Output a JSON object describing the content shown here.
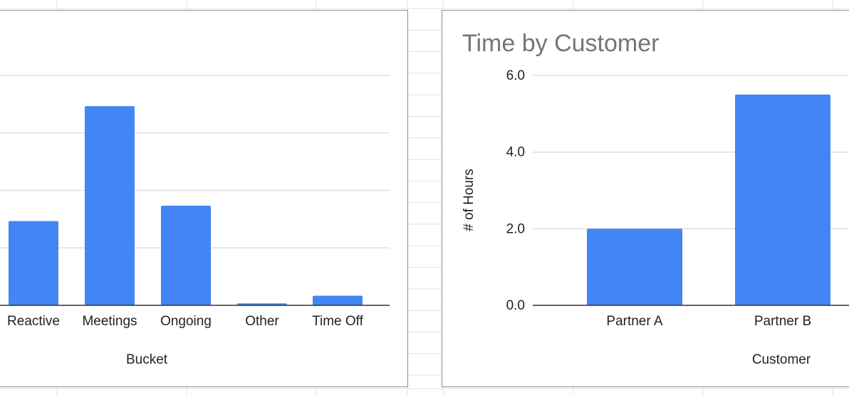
{
  "colors": {
    "bar": "#4285f4",
    "gridline": "#d9d9d9",
    "axis": "#333333",
    "title": "#757575",
    "text": "#222222",
    "sheet_grid": "#e2e2e2"
  },
  "chart_data": [
    {
      "type": "bar",
      "title": "",
      "xlabel": "Bucket",
      "ylabel": "",
      "categories": [
        "Reactive",
        "Meetings",
        "Ongoing",
        "Other",
        "Time Off"
      ],
      "values": [
        2.2,
        5.2,
        2.6,
        0.05,
        0.25
      ],
      "ylim": [
        0,
        6
      ],
      "ytick_values": [
        0,
        1.5,
        3,
        4.5,
        6
      ],
      "ytick_labels": [],
      "grid": true,
      "legend": "none"
    },
    {
      "type": "bar",
      "title": "Time by Customer",
      "xlabel": "Customer",
      "ylabel": "# of Hours",
      "categories": [
        "Partner A",
        "Partner B"
      ],
      "values": [
        2.0,
        5.5
      ],
      "ylim": [
        0,
        6
      ],
      "ytick_values": [
        0,
        2,
        4,
        6
      ],
      "ytick_labels": [
        "0.0",
        "2.0",
        "4.0",
        "6.0"
      ],
      "grid": true,
      "legend": "none"
    }
  ]
}
